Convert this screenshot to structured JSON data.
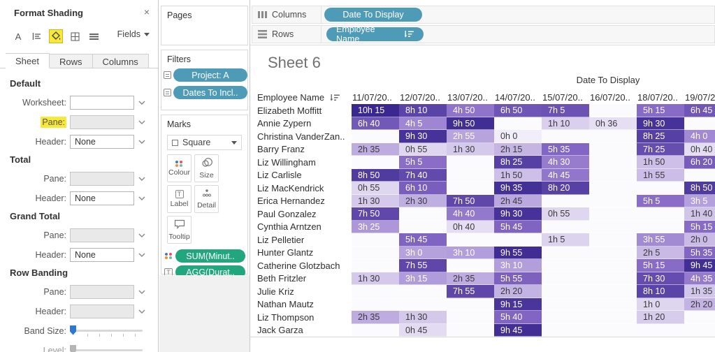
{
  "colors": {
    "pill_blue": "#4E9BB8",
    "pill_green": "#21A67E",
    "heat_scale_light": "#F2EEF9",
    "heat_scale_mid": "#8A6CC8",
    "heat_scale_dark": "#3A2890",
    "heat_max_minutes": 615,
    "slider_blue": "#2E79C8",
    "highlight_yellow": "#F8E839",
    "dot_palette": [
      "#4E79A7",
      "#E15759",
      "#F28E2B",
      "#76B7B2"
    ]
  },
  "format_panel": {
    "title": "Format Shading",
    "close_glyph": "×",
    "fields_button": "Fields",
    "tabs": [
      "Sheet",
      "Rows",
      "Columns"
    ],
    "selected_tab": "Sheet",
    "sections": [
      {
        "title": "Default",
        "rows": [
          {
            "label": "Worksheet:",
            "control": "dropdown",
            "value": "",
            "disabled": false,
            "highlight": false
          },
          {
            "label": "Pane:",
            "control": "dropdown",
            "value": "",
            "disabled": true,
            "highlight": true
          },
          {
            "label": "Header:",
            "control": "dropdown",
            "value": "None",
            "disabled": false,
            "highlight": false
          }
        ]
      },
      {
        "title": "Total",
        "rows": [
          {
            "label": "Pane:",
            "control": "dropdown",
            "value": "",
            "disabled": true,
            "highlight": false
          },
          {
            "label": "Header:",
            "control": "dropdown",
            "value": "None",
            "disabled": false,
            "highlight": false
          }
        ]
      },
      {
        "title": "Grand Total",
        "rows": [
          {
            "label": "Pane:",
            "control": "dropdown",
            "value": "",
            "disabled": true,
            "highlight": false
          },
          {
            "label": "Header:",
            "control": "dropdown",
            "value": "None",
            "disabled": false,
            "highlight": false
          }
        ]
      },
      {
        "title": "Row Banding",
        "rows": [
          {
            "label": "Pane:",
            "control": "dropdown",
            "value": "",
            "disabled": true,
            "highlight": false
          },
          {
            "label": "Header:",
            "control": "dropdown",
            "value": "",
            "disabled": true,
            "highlight": false
          },
          {
            "label": "Band Size:",
            "control": "slider",
            "disabled": false,
            "highlight": false
          },
          {
            "label": "Level:",
            "control": "slider",
            "disabled": true,
            "highlight": false
          }
        ]
      }
    ]
  },
  "pages_card": {
    "title": "Pages"
  },
  "filters_card": {
    "title": "Filters",
    "pills": [
      "Project: A",
      "Dates To Incl.."
    ]
  },
  "marks_card": {
    "title": "Marks",
    "mark_type": "Square",
    "buttons": [
      {
        "label": "Colour",
        "icon": "colour-icon"
      },
      {
        "label": "Size",
        "icon": "size-icon"
      },
      {
        "label": "Label",
        "icon": "label-icon"
      },
      {
        "label": "Detail",
        "icon": "detail-icon"
      },
      {
        "label": "Tooltip",
        "icon": "tooltip-icon"
      }
    ],
    "pills": [
      {
        "label": "SUM(Minut..",
        "icon": "colour"
      },
      {
        "label": "AGG(Durat..",
        "icon": "text"
      },
      {
        "label": "AGG(Durat..",
        "icon": "text"
      }
    ]
  },
  "shelves": {
    "columns": {
      "label": "Columns",
      "pill": "Date To Display"
    },
    "rows": {
      "label": "Rows",
      "pill": "Employee Name",
      "sorted": true
    }
  },
  "sheet": {
    "title": "Sheet 6",
    "column_field_label": "Date To Display",
    "row_header": "Employee Name",
    "date_columns": [
      "11/07/20..",
      "12/07/20..",
      "13/07/20..",
      "14/07/20..",
      "15/07/20..",
      "16/07/20..",
      "18/07/20..",
      "19/07/20.."
    ],
    "rows": [
      {
        "name": "Elizabeth Moffitt",
        "cells": [
          "10h 15",
          "8h 10",
          "4h 50",
          "6h 50",
          "7h 5",
          "",
          "5h 15",
          "6h 45"
        ]
      },
      {
        "name": "Annie Zypern",
        "cells": [
          "6h 40",
          "4h 5",
          "9h 50",
          "",
          "1h 10",
          "0h 36",
          "9h 30",
          ""
        ]
      },
      {
        "name": "Christina VanderZan..",
        "cells": [
          "",
          "9h 30",
          "2h 55",
          "0h 0",
          "",
          "",
          "8h 25",
          "4h 0"
        ]
      },
      {
        "name": "Barry Franz",
        "cells": [
          "2h 35",
          "0h 55",
          "1h 30",
          "2h 15",
          "5h 35",
          "",
          "7h 25",
          "0h 40"
        ]
      },
      {
        "name": "Liz Willingham",
        "cells": [
          "",
          "5h 5",
          "",
          "8h 25",
          "4h 30",
          "",
          "1h 50",
          "6h 20"
        ]
      },
      {
        "name": "Liz Carlisle",
        "cells": [
          "8h 50",
          "7h 40",
          "",
          "1h 50",
          "4h 45",
          "",
          "1h 55",
          ""
        ]
      },
      {
        "name": "Liz MacKendrick",
        "cells": [
          "0h 55",
          "6h 10",
          "",
          "9h 35",
          "8h 20",
          "",
          "",
          "8h 50"
        ]
      },
      {
        "name": "Erica Hernandez",
        "cells": [
          "1h 30",
          "2h 30",
          "7h 50",
          "2h 45",
          "",
          "",
          "5h 5",
          "3h 5"
        ]
      },
      {
        "name": "Paul Gonzalez",
        "cells": [
          "7h 50",
          "",
          "4h 40",
          "9h 30",
          "0h 55",
          "",
          "",
          "1h 40"
        ]
      },
      {
        "name": "Cynthia Arntzen",
        "cells": [
          "3h 25",
          "",
          "0h 40",
          "5h 45",
          "",
          "",
          "",
          "5h 15"
        ]
      },
      {
        "name": "Liz Pelletier",
        "cells": [
          "",
          "5h 45",
          "",
          "",
          "1h 5",
          "",
          "3h 55",
          "2h 0"
        ]
      },
      {
        "name": "Hunter Glantz",
        "cells": [
          "",
          "3h 0",
          "3h 10",
          "9h 55",
          "",
          "",
          "2h 5",
          "5h 35"
        ]
      },
      {
        "name": "Catherine Glotzbach",
        "cells": [
          "",
          "7h 55",
          "",
          "3h 10",
          "",
          "",
          "5h 15",
          "9h 45"
        ]
      },
      {
        "name": "Beth Fritzler",
        "cells": [
          "1h 30",
          "3h 15",
          "2h 35",
          "5h 55",
          "",
          "",
          "7h 30",
          "4h 35"
        ]
      },
      {
        "name": "Julie Kriz",
        "cells": [
          "",
          "",
          "7h 55",
          "2h 20",
          "",
          "",
          "8h 10",
          "1h 35"
        ]
      },
      {
        "name": "Nathan Mautz",
        "cells": [
          "",
          "",
          "",
          "9h 15",
          "",
          "",
          "1h 0",
          "2h 20"
        ]
      },
      {
        "name": "Liz Thompson",
        "cells": [
          "2h 35",
          "1h 30",
          "",
          "5h 40",
          "",
          "",
          "1h 20",
          ""
        ]
      },
      {
        "name": "Jack Garza",
        "cells": [
          "",
          "0h 45",
          "",
          "9h 45",
          "",
          "",
          "",
          ""
        ]
      }
    ]
  }
}
